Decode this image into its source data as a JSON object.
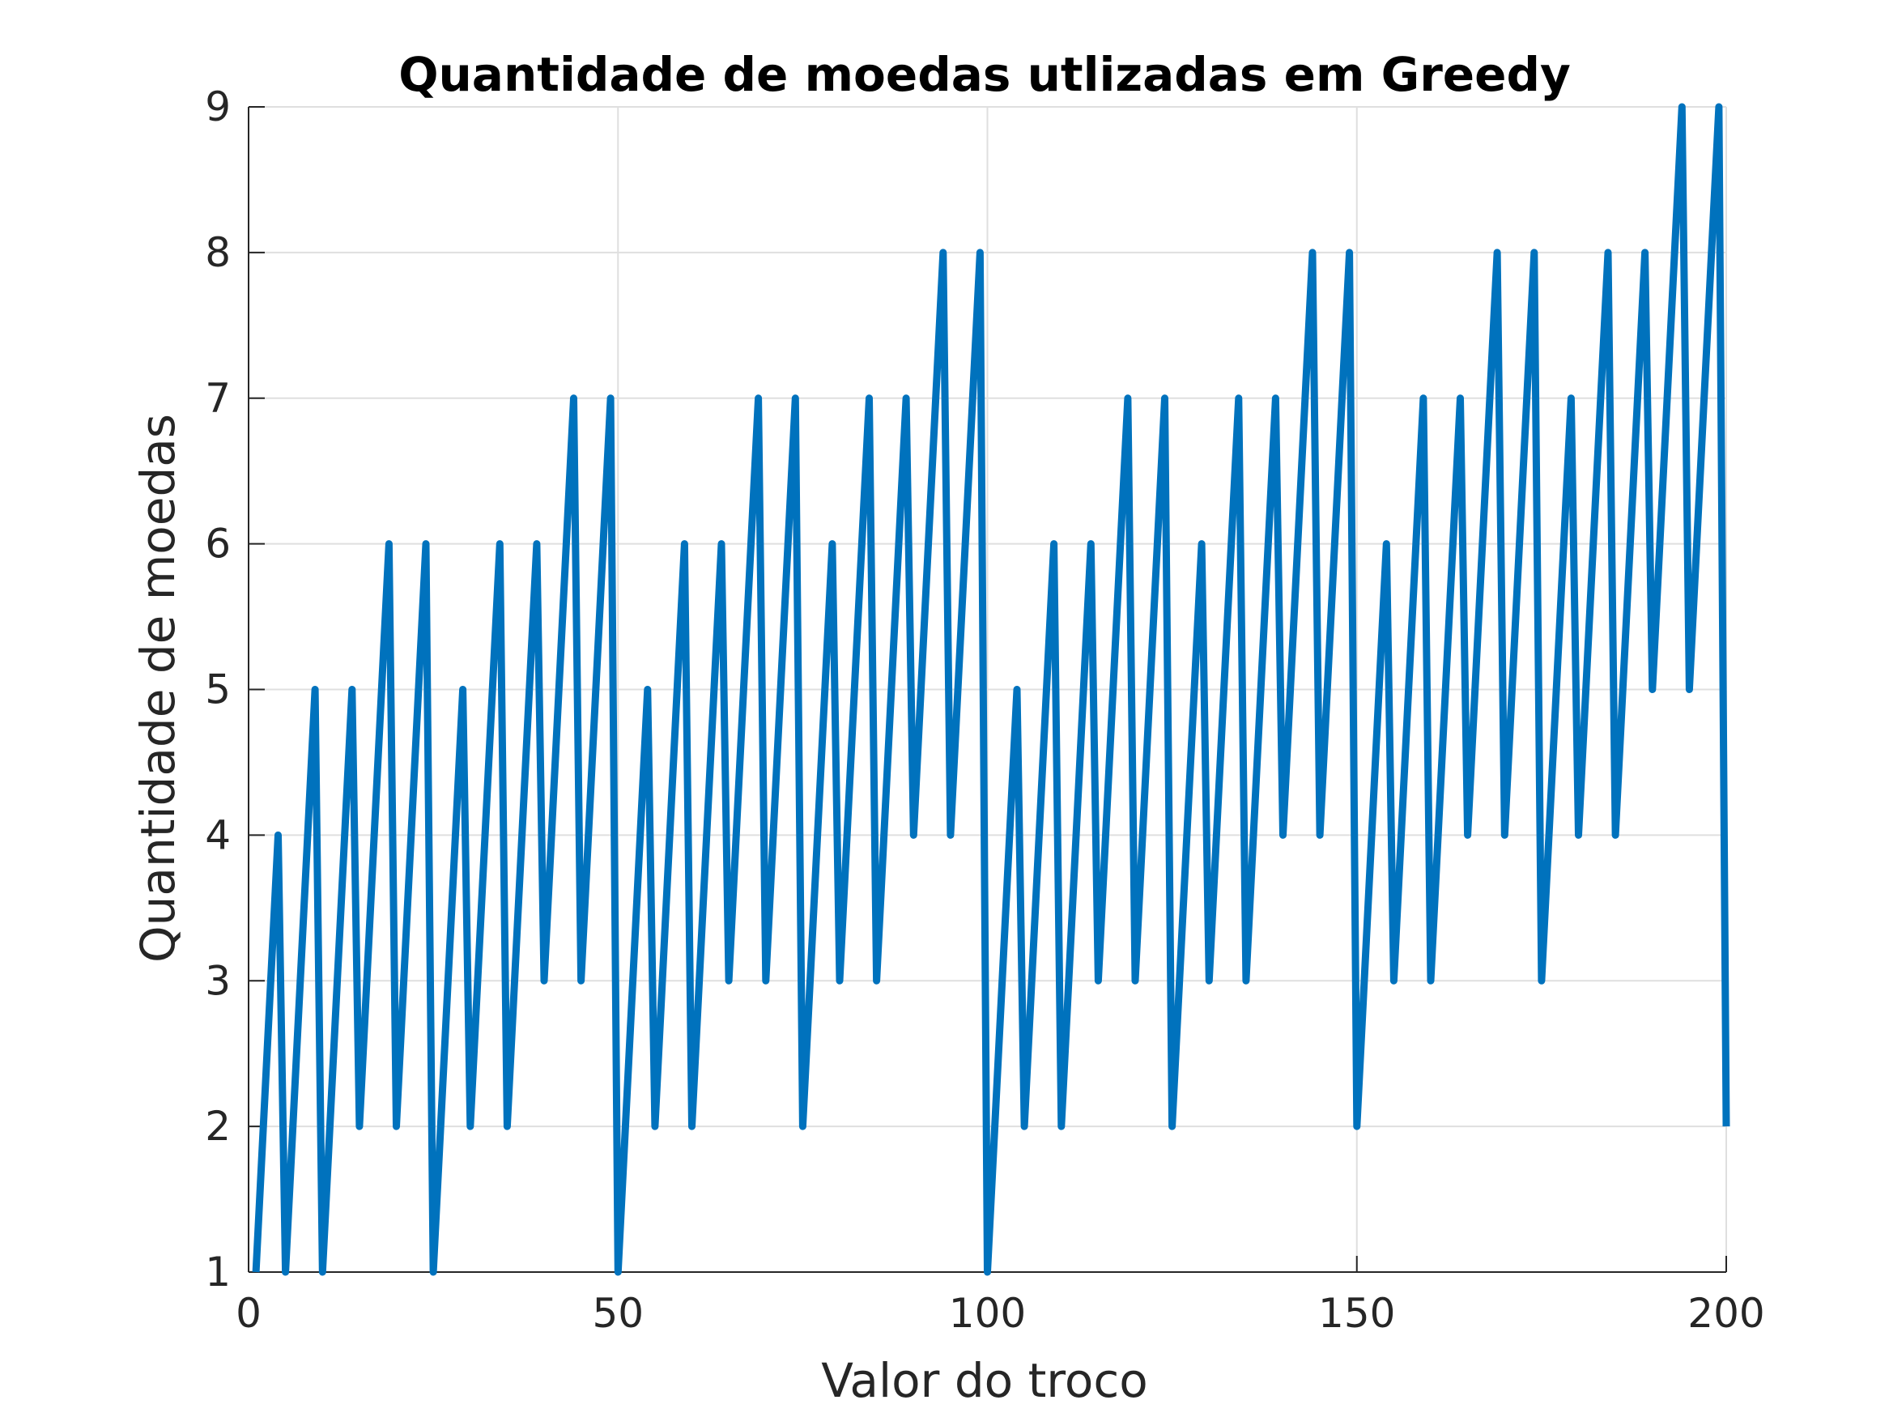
{
  "chart_data": {
    "type": "line",
    "title": "Quantidade de moedas utlizadas em Greedy",
    "xlabel": "Valor do troco",
    "ylabel": "Quantidade de moedas",
    "xlim": [
      0,
      200
    ],
    "ylim": [
      1,
      9
    ],
    "xticks": [
      0,
      50,
      100,
      150,
      200
    ],
    "yticks": [
      1,
      2,
      3,
      4,
      5,
      6,
      7,
      8,
      9
    ],
    "xtick_labels": [
      "0",
      "50",
      "100",
      "150",
      "200"
    ],
    "ytick_labels": [
      "1",
      "2",
      "3",
      "4",
      "5",
      "6",
      "7",
      "8",
      "9"
    ],
    "grid": true,
    "legend": "none",
    "series": [
      {
        "color": "#0072BD",
        "x": [
          1,
          4,
          5,
          9,
          10,
          14,
          15,
          19,
          20,
          24,
          25,
          29,
          30,
          34,
          35,
          39,
          40,
          44,
          45,
          49,
          50,
          54,
          55,
          59,
          60,
          64,
          65,
          69,
          70,
          74,
          75,
          79,
          80,
          84,
          85,
          89,
          90,
          94,
          95,
          99,
          100,
          104,
          105,
          109,
          110,
          114,
          115,
          119,
          120,
          124,
          125,
          129,
          130,
          134,
          135,
          139,
          140,
          144,
          145,
          149,
          150,
          154,
          155,
          159,
          160,
          164,
          165,
          169,
          170,
          174,
          175,
          179,
          180,
          184,
          185,
          189,
          190,
          194,
          195,
          199,
          200
        ],
        "y": [
          1,
          4,
          1,
          5,
          1,
          5,
          2,
          6,
          2,
          6,
          1,
          5,
          2,
          6,
          2,
          6,
          3,
          7,
          3,
          7,
          1,
          5,
          2,
          6,
          2,
          6,
          3,
          7,
          3,
          7,
          2,
          6,
          3,
          7,
          3,
          7,
          4,
          8,
          4,
          8,
          1,
          5,
          2,
          6,
          2,
          6,
          3,
          7,
          3,
          7,
          2,
          6,
          3,
          7,
          3,
          7,
          4,
          8,
          4,
          8,
          2,
          6,
          3,
          7,
          3,
          7,
          4,
          8,
          4,
          8,
          3,
          7,
          4,
          8,
          4,
          8,
          5,
          9,
          5,
          9,
          2
        ]
      }
    ]
  },
  "colors": {
    "line": "#0072BD",
    "grid": "#dfdfdf",
    "axis": "#262626",
    "title": "#000000"
  }
}
